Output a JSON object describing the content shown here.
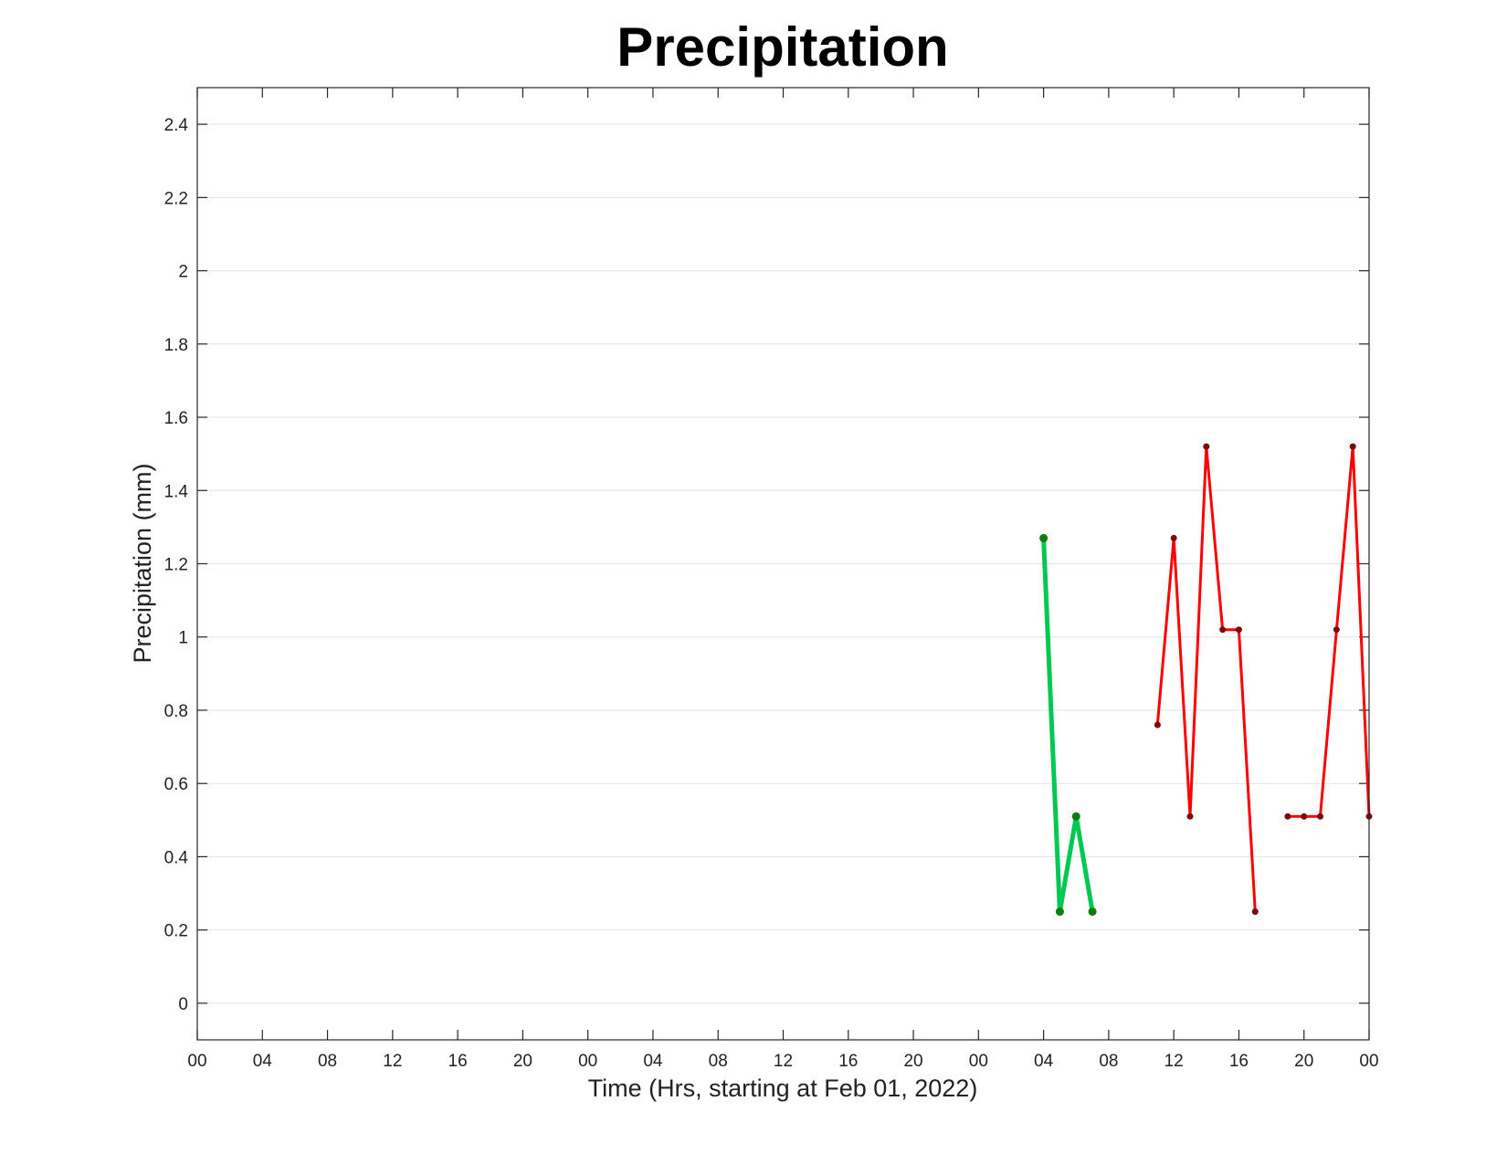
{
  "chart_data": {
    "type": "line",
    "title": "Precipitation",
    "xlabel": "Time (Hrs, starting at Feb 01, 2022)",
    "ylabel": "Precipitation (mm)",
    "x_start": "2022-02-01 00:00",
    "x_tick_labels": [
      "00",
      "04",
      "08",
      "12",
      "16",
      "20",
      "00",
      "04",
      "08",
      "12",
      "16",
      "20",
      "00",
      "04",
      "08",
      "12",
      "16",
      "20",
      "00"
    ],
    "xlim": [
      "2022-02-01 00:00",
      "2022-02-04 00:00"
    ],
    "ylim": [
      -0.1,
      2.5
    ],
    "y_tick_labels": [
      "0",
      "0.2",
      "0.4",
      "0.6",
      "0.8",
      "1",
      "1.2",
      "1.4",
      "1.6",
      "1.8",
      "2",
      "2.2",
      "2.4"
    ],
    "y_ticks": [
      0,
      0.2,
      0.4,
      0.6,
      0.8,
      1,
      1.2,
      1.4,
      1.6,
      1.8,
      2,
      2.2,
      2.4
    ],
    "grid": "horizontal",
    "series": [
      {
        "color": "#00c853",
        "marker_color": "#0a7d0a",
        "points": [
          {
            "x": "2022-02-03 04:00",
            "y": 1.27
          },
          {
            "x": "2022-02-03 05:00",
            "y": 0.25
          },
          {
            "x": "2022-02-03 06:00",
            "y": 0.51
          },
          {
            "x": "2022-02-03 07:00",
            "y": 0.25
          }
        ]
      },
      {
        "color": "#ff0000",
        "marker_color": "#7a0a0a",
        "points": [
          {
            "x": "2022-02-03 11:00",
            "y": 0.76
          },
          {
            "x": "2022-02-03 12:00",
            "y": 1.27
          },
          {
            "x": "2022-02-03 13:00",
            "y": 0.51
          },
          {
            "x": "2022-02-03 14:00",
            "y": 1.52
          },
          {
            "x": "2022-02-03 15:00",
            "y": 1.02
          },
          {
            "x": "2022-02-03 16:00",
            "y": 1.02
          },
          {
            "x": "2022-02-03 17:00",
            "y": 0.25
          }
        ]
      },
      {
        "color": "#ff0000",
        "marker_color": "#7a0a0a",
        "points": [
          {
            "x": "2022-02-03 19:00",
            "y": 0.51
          },
          {
            "x": "2022-02-03 20:00",
            "y": 0.51
          },
          {
            "x": "2022-02-03 21:00",
            "y": 0.51
          },
          {
            "x": "2022-02-03 22:00",
            "y": 1.02
          },
          {
            "x": "2022-02-03 23:00",
            "y": 1.52
          },
          {
            "x": "2022-02-04 00:00",
            "y": 0.51
          }
        ]
      }
    ]
  }
}
